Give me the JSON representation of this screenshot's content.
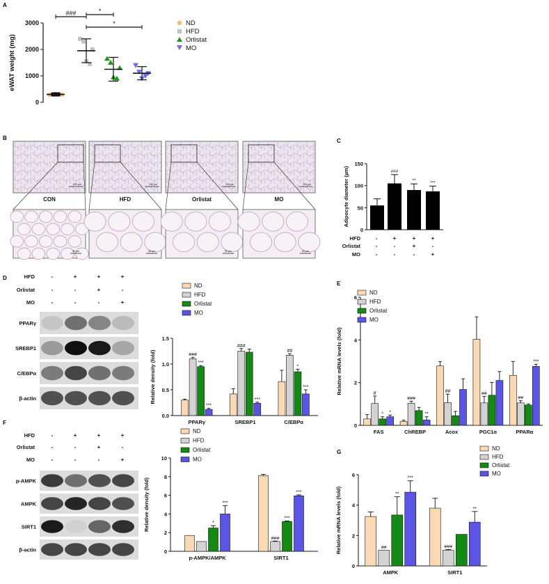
{
  "panels": {
    "A": "A",
    "B": "B",
    "C": "C",
    "D": "D",
    "E": "E",
    "F": "F",
    "G": "G"
  },
  "colors": {
    "ND": "#fbd9b4",
    "HFD": "#d3d3d3",
    "Orlistat": "#138a13",
    "MO": "#5a55e6",
    "ND_marker": "#f4b978",
    "HFD_marker": "#c2c2c2",
    "Orlistat_marker": "#1a9a1a",
    "MO_marker": "#6b6bee"
  },
  "panel_B": {
    "labels": [
      "CON",
      "HFD",
      "Orlistat",
      "MO"
    ],
    "scale_label_top": "200 µm",
    "scale_label_bottom": "50 µm"
  },
  "conditions_CD": {
    "rows": [
      {
        "name": "HFD",
        "values": [
          "-",
          "+",
          "+",
          "+"
        ]
      },
      {
        "name": "Orlistat",
        "values": [
          "-",
          "-",
          "+",
          "-"
        ]
      },
      {
        "name": "MO",
        "values": [
          "-",
          "-",
          "-",
          "+"
        ]
      }
    ]
  },
  "blot_D": {
    "rows": [
      "PPARγ",
      "SREBP1",
      "C/EBPα",
      "β-actin"
    ],
    "band_intensity": [
      [
        0.15,
        0.55,
        0.45,
        0.2
      ],
      [
        0.35,
        1.0,
        0.95,
        0.3
      ],
      [
        0.5,
        0.75,
        0.55,
        0.5
      ],
      [
        0.7,
        0.7,
        0.7,
        0.7
      ]
    ]
  },
  "blot_F": {
    "rows": [
      "p-AMPK",
      "AMPK",
      "SIRT1",
      "β-actin"
    ],
    "band_intensity": [
      [
        0.8,
        0.55,
        0.7,
        0.75
      ],
      [
        0.75,
        0.9,
        0.75,
        0.7
      ],
      [
        0.95,
        0.1,
        0.6,
        0.85
      ],
      [
        0.75,
        0.75,
        0.75,
        0.75
      ]
    ]
  },
  "chart_data": [
    {
      "id": "A",
      "type": "scatter",
      "title": "",
      "ylabel": "eWAT weight (mg)",
      "ylim": [
        0,
        3000
      ],
      "yticks": [
        0,
        1000,
        2000,
        3000
      ],
      "groups": [
        {
          "name": "ND",
          "marker": "circle",
          "mean": 300,
          "sd": 40,
          "points": [
            280,
            300,
            320,
            310,
            290
          ]
        },
        {
          "name": "HFD",
          "marker": "square",
          "mean": 1950,
          "sd": 450,
          "points": [
            2400,
            2300,
            1550,
            1450,
            2000
          ]
        },
        {
          "name": "Orlistat",
          "marker": "triangle-up",
          "mean": 1250,
          "sd": 450,
          "points": [
            1650,
            1500,
            950,
            900,
            1300
          ]
        },
        {
          "name": "MO",
          "marker": "triangle-down",
          "mean": 1100,
          "sd": 250,
          "points": [
            1400,
            1150,
            900,
            1000,
            1100
          ]
        }
      ],
      "annotations": [
        "###",
        "*",
        "*"
      ],
      "legend": [
        "ND",
        "HFD",
        "Orlistat",
        "MO"
      ],
      "legend_position": "right"
    },
    {
      "id": "C",
      "type": "bar",
      "ylabel": "Adipocyte diameter (µm)",
      "ylim": [
        0,
        150
      ],
      "yticks": [
        0,
        50,
        100,
        150
      ],
      "values": [
        55,
        105,
        90,
        87
      ],
      "errors": [
        15,
        20,
        14,
        12
      ],
      "sig": [
        "",
        "###",
        "**",
        "***"
      ]
    },
    {
      "id": "D",
      "type": "bar",
      "ylabel": "Relative density (fold)",
      "ylim": [
        0,
        1.5
      ],
      "yticks": [
        "0.0",
        "0.5",
        "1.0",
        "1.5"
      ],
      "categories": [
        "PPARγ",
        "SREBP1",
        "C/EBPα"
      ],
      "series": [
        {
          "name": "ND",
          "values": [
            0.3,
            0.42,
            0.66
          ],
          "errors": [
            0.02,
            0.1,
            0.22
          ]
        },
        {
          "name": "HFD",
          "values": [
            1.1,
            1.25,
            1.17
          ],
          "errors": [
            0.03,
            0.05,
            0.03
          ]
        },
        {
          "name": "Orlistat",
          "values": [
            0.95,
            1.23,
            0.85
          ],
          "errors": [
            0.02,
            0.06,
            0.05
          ]
        },
        {
          "name": "MO",
          "values": [
            0.12,
            0.24,
            0.42
          ],
          "errors": [
            0.02,
            0.02,
            0.08
          ]
        }
      ],
      "sig": [
        [
          "",
          "###",
          "***",
          "***"
        ],
        [
          "",
          "###",
          "",
          "***"
        ],
        [
          "",
          "##",
          "*",
          "***"
        ]
      ],
      "legend": [
        "ND",
        "HFD",
        "Orlistat",
        "MO"
      ]
    },
    {
      "id": "E",
      "type": "bar",
      "ylabel": "Relative mRNA levels (fold)",
      "ylim": [
        0,
        6
      ],
      "yticks": [
        0,
        2,
        4,
        6
      ],
      "categories": [
        "FAS",
        "ChREBP",
        "Acox",
        "PGC1α",
        "PPARα"
      ],
      "series": [
        {
          "name": "ND",
          "values": [
            0.3,
            0.18,
            2.78,
            4.03,
            2.34
          ],
          "errors": [
            0.2,
            0.06,
            0.2,
            1.05,
            0.65
          ]
        },
        {
          "name": "HFD",
          "values": [
            1.02,
            1.03,
            1.06,
            1.05,
            1.05
          ],
          "errors": [
            0.35,
            0.1,
            0.4,
            0.3,
            0.1
          ]
        },
        {
          "name": "Orlistat",
          "values": [
            0.3,
            0.69,
            0.45,
            1.41,
            0.95
          ],
          "errors": [
            0.1,
            0.15,
            0.2,
            0.6,
            0.05
          ]
        },
        {
          "name": "MO",
          "values": [
            0.4,
            0.25,
            1.68,
            2.1,
            2.76
          ],
          "errors": [
            0.08,
            0.15,
            0.5,
            0.42,
            0.1
          ]
        }
      ],
      "sig": [
        [
          "",
          "#",
          "*",
          "*"
        ],
        [
          "",
          "###",
          "",
          "**"
        ],
        [
          "",
          "##",
          "",
          ""
        ],
        [
          "",
          "##",
          "",
          ""
        ],
        [
          "",
          "##",
          "",
          "***"
        ]
      ],
      "legend": [
        "ND",
        "HFD",
        "Orlistat",
        "MO"
      ]
    },
    {
      "id": "F",
      "type": "bar",
      "ylabel": "Relative density (fold)",
      "ylim": [
        0,
        10
      ],
      "yticks": [
        0,
        2,
        4,
        6,
        8,
        10
      ],
      "categories": [
        "p-AMPK/AMPK",
        "SIRT1"
      ],
      "series": [
        {
          "name": "ND",
          "values": [
            1.7,
            8.1
          ],
          "errors": [
            0,
            0.15
          ]
        },
        {
          "name": "HFD",
          "values": [
            1.05,
            1.05
          ],
          "errors": [
            0,
            0.05
          ]
        },
        {
          "name": "Orlistat",
          "values": [
            2.5,
            3.2
          ],
          "errors": [
            0.25,
            0.05
          ]
        },
        {
          "name": "MO",
          "values": [
            4.0,
            5.95
          ],
          "errors": [
            0.9,
            0.1
          ]
        }
      ],
      "sig": [
        [
          "",
          "",
          "*",
          "***"
        ],
        [
          "",
          "###",
          "***",
          "***"
        ]
      ],
      "legend": [
        "ND",
        "HFD",
        "Orlistat",
        "MO"
      ]
    },
    {
      "id": "G",
      "type": "bar",
      "ylabel": "Relative mRNA levels (fold)",
      "ylim": [
        0,
        6
      ],
      "yticks": [
        0,
        2,
        4,
        6
      ],
      "categories": [
        "AMPK",
        "SIRT1"
      ],
      "series": [
        {
          "name": "ND",
          "values": [
            3.25,
            3.8
          ],
          "errors": [
            0.3,
            0.65
          ]
        },
        {
          "name": "HFD",
          "values": [
            1.03,
            1.03
          ],
          "errors": [
            0,
            0.05
          ]
        },
        {
          "name": "Orlistat",
          "values": [
            3.35,
            2.08
          ],
          "errors": [
            1.2,
            0
          ]
        },
        {
          "name": "MO",
          "values": [
            4.85,
            2.88
          ],
          "errors": [
            0.75,
            0.7
          ]
        }
      ],
      "sig": [
        [
          "",
          "##",
          "**",
          "***"
        ],
        [
          "",
          "###",
          "",
          "**"
        ]
      ],
      "legend": [
        "ND",
        "HFD",
        "Orlistat",
        "MO"
      ]
    }
  ]
}
